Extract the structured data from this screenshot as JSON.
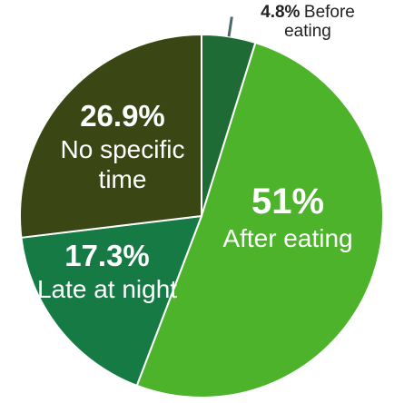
{
  "chart_data": {
    "type": "pie",
    "categories": [
      "Before eating",
      "After eating",
      "Late at night",
      "No specific time"
    ],
    "values": [
      4.8,
      51,
      17.3,
      26.9
    ],
    "value_labels": [
      "4.8%",
      "51%",
      "17.3%",
      "26.9%"
    ],
    "colors": [
      "#1f6b35",
      "#4cb32b",
      "#167a45",
      "#3a4714"
    ]
  }
}
